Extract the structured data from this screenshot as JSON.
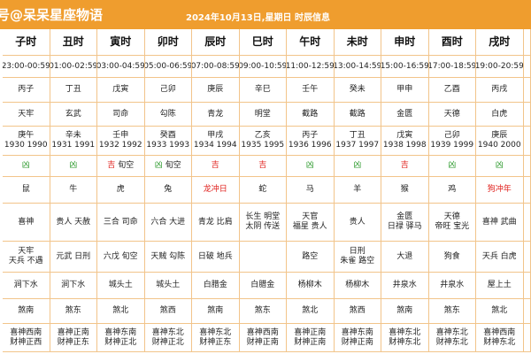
{
  "header": {
    "site": "号@呆呆星座物语",
    "title": "2024年10月13日,星期日 时辰信息"
  },
  "table": {
    "columns": [
      "子时",
      "丑时",
      "寅时",
      "卯时",
      "辰时",
      "巳时",
      "午时",
      "未时",
      "申时",
      "酉时",
      "戌时"
    ],
    "rows": [
      [
        [
          "23:00-00:59"
        ],
        [
          "01:00-02:59"
        ],
        [
          "03:00-04:59"
        ],
        [
          "05:00-06:59"
        ],
        [
          "07:00-08:59"
        ],
        [
          "09:00-10:59"
        ],
        [
          "11:00-12:59"
        ],
        [
          "13:00-14:59"
        ],
        [
          "15:00-16:59"
        ],
        [
          "17:00-18:59"
        ],
        [
          "19:00-20:59"
        ]
      ],
      [
        [
          "丙子"
        ],
        [
          "丁丑"
        ],
        [
          "戊寅"
        ],
        [
          "己卯"
        ],
        [
          "庚辰"
        ],
        [
          "辛巳"
        ],
        [
          "壬午"
        ],
        [
          "癸未"
        ],
        [
          "甲申"
        ],
        [
          "乙酉"
        ],
        [
          "丙戌"
        ]
      ],
      [
        [
          "天牢"
        ],
        [
          "玄武"
        ],
        [
          "司命"
        ],
        [
          "勾陈"
        ],
        [
          "青龙"
        ],
        [
          "明堂"
        ],
        [
          "截路"
        ],
        [
          "截路"
        ],
        [
          "金匮"
        ],
        [
          "天德"
        ],
        [
          "白虎"
        ]
      ],
      [
        [
          "庚午",
          "1930 1990"
        ],
        [
          "辛未",
          "1931 1991"
        ],
        [
          "壬申",
          "1932 1992"
        ],
        [
          "癸酉",
          "1933 1993"
        ],
        [
          "甲戌",
          "1934 1994"
        ],
        [
          "乙亥",
          "1935 1995"
        ],
        [
          "丙子",
          "1936 1996"
        ],
        [
          "丁丑",
          "1937 1997"
        ],
        [
          "戊寅",
          "1938 1998"
        ],
        [
          "己卯",
          "1939 1999"
        ],
        [
          "庚辰",
          "1940 2000"
        ]
      ],
      [
        {
          "luck": "凶",
          "good": false
        },
        {
          "luck": "凶",
          "good": false
        },
        {
          "luck": "吉",
          "good": true,
          "note": "旬空"
        },
        {
          "luck": "凶",
          "good": false,
          "note": "旬空"
        },
        {
          "luck": "吉",
          "good": true
        },
        {
          "luck": "吉",
          "good": true
        },
        {
          "luck": "凶",
          "good": false
        },
        {
          "luck": "凶",
          "good": false
        },
        {
          "luck": "吉",
          "good": true
        },
        {
          "luck": "凶",
          "good": false
        },
        {
          "luck": "凶",
          "good": false
        }
      ],
      [
        {
          "animal": "鼠"
        },
        {
          "animal": "牛"
        },
        {
          "animal": "虎"
        },
        {
          "animal": "兔"
        },
        {
          "animal": "龙",
          "clash": "冲日"
        },
        {
          "animal": "蛇"
        },
        {
          "animal": "马"
        },
        {
          "animal": "羊"
        },
        {
          "animal": "猴"
        },
        {
          "animal": "鸡"
        },
        {
          "animal": "狗",
          "clash": "冲年"
        }
      ],
      [
        [
          "喜神"
        ],
        [
          "贵人 天赦"
        ],
        [
          "三合 司命"
        ],
        [
          "六合 大进"
        ],
        [
          "青龙 比肩"
        ],
        [
          "长生 明堂",
          "太阴 传送"
        ],
        [
          "天官",
          "福星 贵人"
        ],
        [
          "贵人"
        ],
        [
          "金匮",
          "日禄 驿马"
        ],
        [
          "天德",
          "帝旺 宝光"
        ],
        [
          "喜神 武曲"
        ]
      ],
      [
        [
          "天牢",
          "天兵 不遇"
        ],
        [
          "元武 日刑"
        ],
        [
          "六戊 旬空"
        ],
        [
          "天贼 勾陈"
        ],
        [
          "日破 地兵"
        ],
        [],
        [
          "路空"
        ],
        [
          "日刑",
          "朱雀 路空"
        ],
        [
          "大退"
        ],
        [
          "狗食"
        ],
        [
          "天兵 白虎"
        ]
      ],
      [
        [
          "涧下水"
        ],
        [
          "涧下水"
        ],
        [
          "城头土"
        ],
        [
          "城头土"
        ],
        [
          "白腊金"
        ],
        [
          "白腊金"
        ],
        [
          "杨柳木"
        ],
        [
          "杨柳木"
        ],
        [
          "井泉水"
        ],
        [
          "井泉水"
        ],
        [
          "屋上土"
        ]
      ],
      [
        [
          "煞南"
        ],
        [
          "煞东"
        ],
        [
          "煞北"
        ],
        [
          "煞西"
        ],
        [
          "煞南"
        ],
        [
          "煞东"
        ],
        [
          "煞北"
        ],
        [
          "煞西"
        ],
        [
          "煞南"
        ],
        [
          "煞东"
        ],
        [
          "煞北"
        ]
      ],
      [
        [
          "喜神西南",
          "财神正西"
        ],
        [
          "喜神正南",
          "财神正东"
        ],
        [
          "喜神东南",
          "财神正北"
        ],
        [
          "喜神东北",
          "财神正北"
        ],
        [
          "喜神东北",
          "财神正东"
        ],
        [
          "喜神西南",
          "财神正南"
        ],
        [
          "喜神正南",
          "财神正南"
        ],
        [
          "喜神东南",
          "财神正南"
        ],
        [
          "喜神东北",
          "财神东北"
        ],
        [
          "喜神东北",
          "财神东北"
        ],
        [
          "喜神西南",
          "财神东北"
        ]
      ]
    ]
  }
}
